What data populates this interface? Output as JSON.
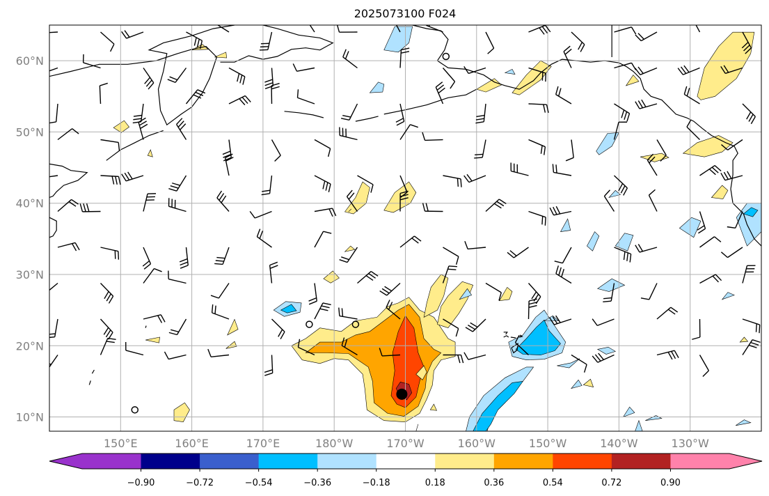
{
  "title": "2025073100 F024",
  "map": {
    "lon_range": [
      140,
      240
    ],
    "lat_range": [
      8,
      65
    ],
    "lon_ticks": [
      {
        "lon": 150,
        "label": "150°E"
      },
      {
        "lon": 160,
        "label": "160°E"
      },
      {
        "lon": 170,
        "label": "170°E"
      },
      {
        "lon": 180,
        "label": "180°W"
      },
      {
        "lon": 190,
        "label": "170°W"
      },
      {
        "lon": 200,
        "label": "160°W"
      },
      {
        "lon": 210,
        "label": "150°W"
      },
      {
        "lon": 220,
        "label": "140°W"
      },
      {
        "lon": 230,
        "label": "130°W"
      }
    ],
    "lat_ticks": [
      {
        "lat": 10,
        "label": "10°N"
      },
      {
        "lat": 20,
        "label": "20°N"
      },
      {
        "lat": 30,
        "label": "30°N"
      },
      {
        "lat": 40,
        "label": "40°N"
      },
      {
        "lat": 50,
        "label": "50°N"
      },
      {
        "lat": 60,
        "label": "60°N"
      }
    ],
    "grid": true,
    "storm_center": {
      "lon": 189.5,
      "lat": 13.2
    }
  },
  "colorbar": {
    "extend": "both",
    "colors": [
      "#9932CC",
      "#00008B",
      "#3A5FCD",
      "#00BFFF",
      "#B0E2FF",
      "#FFFFFF",
      "#FFEC8B",
      "#FFA500",
      "#FF4500",
      "#B22222",
      "#FF82AB"
    ],
    "tick_labels": [
      "−0.90",
      "−0.72",
      "−0.54",
      "−0.36",
      "−0.18",
      "0.18",
      "0.36",
      "0.54",
      "0.72",
      "0.90"
    ]
  }
}
